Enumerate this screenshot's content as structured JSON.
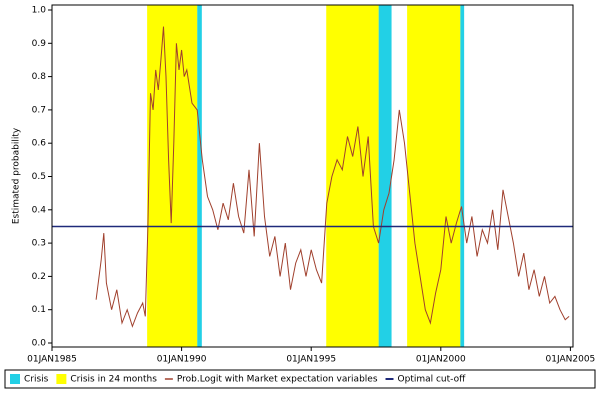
{
  "chart_data": {
    "type": "line",
    "ylabel": "Estimated probability",
    "ylim": [
      -0.012,
      1.015
    ],
    "yticks": [
      {
        "value": 0,
        "label": "0.0"
      },
      0.1,
      0.2,
      0.3,
      0.4,
      0.5,
      0.6,
      0.7,
      0.8,
      0.9,
      {
        "value": 1,
        "label": "1.0"
      }
    ],
    "xlim": [
      1985,
      2005.1
    ],
    "xticks": [
      {
        "value": 1985,
        "label": "01JAN1985"
      },
      {
        "value": 1990,
        "label": "01JAN1990"
      },
      {
        "value": 1995,
        "label": "01JAN1995"
      },
      {
        "value": 2000,
        "label": "01JAN2000"
      },
      {
        "value": 2005,
        "label": "01JAN2005"
      }
    ],
    "bands": [
      {
        "name": "Crisis",
        "color": "#22d0e6",
        "ranges": [
          [
            1990.6,
            1990.78
          ],
          [
            1997.6,
            1998.1
          ],
          [
            2000.75,
            2000.9
          ]
        ]
      },
      {
        "name": "Crisis in 24 months",
        "color": "#ffff00",
        "ranges": [
          [
            1988.67,
            1990.6
          ],
          [
            1995.58,
            1997.6
          ],
          [
            1998.7,
            2000.75
          ]
        ]
      }
    ],
    "series": [
      {
        "name": "Prob.Logit with Market expectation variables",
        "color": "#a0402d",
        "x": [
          1986.7,
          1986.9,
          1987.0,
          1987.1,
          1987.3,
          1987.5,
          1987.7,
          1987.9,
          1988.1,
          1988.3,
          1988.5,
          1988.6,
          1988.7,
          1988.8,
          1988.9,
          1989.0,
          1989.1,
          1989.2,
          1989.3,
          1989.4,
          1989.5,
          1989.6,
          1989.7,
          1989.8,
          1989.9,
          1990.0,
          1990.1,
          1990.2,
          1990.4,
          1990.6,
          1990.8,
          1991.0,
          1991.2,
          1991.4,
          1991.6,
          1991.8,
          1992.0,
          1992.2,
          1992.4,
          1992.6,
          1992.8,
          1993.0,
          1993.2,
          1993.4,
          1993.6,
          1993.8,
          1994.0,
          1994.2,
          1994.4,
          1994.6,
          1994.8,
          1995.0,
          1995.2,
          1995.4,
          1995.6,
          1995.8,
          1996.0,
          1996.2,
          1996.4,
          1996.6,
          1996.8,
          1997.0,
          1997.2,
          1997.4,
          1997.6,
          1997.8,
          1998.0,
          1998.2,
          1998.4,
          1998.6,
          1998.8,
          1999.0,
          1999.2,
          1999.4,
          1999.6,
          1999.8,
          2000.0,
          2000.2,
          2000.4,
          2000.6,
          2000.8,
          2001.0,
          2001.2,
          2001.4,
          2001.6,
          2001.8,
          2002.0,
          2002.2,
          2002.4,
          2002.6,
          2002.8,
          2003.0,
          2003.2,
          2003.4,
          2003.6,
          2003.8,
          2004.0,
          2004.2,
          2004.4,
          2004.6,
          2004.8,
          2004.95
        ],
        "values": [
          0.13,
          0.25,
          0.33,
          0.18,
          0.1,
          0.16,
          0.06,
          0.1,
          0.05,
          0.09,
          0.12,
          0.08,
          0.35,
          0.75,
          0.7,
          0.82,
          0.76,
          0.85,
          0.95,
          0.8,
          0.55,
          0.36,
          0.6,
          0.9,
          0.82,
          0.88,
          0.8,
          0.82,
          0.72,
          0.7,
          0.55,
          0.44,
          0.4,
          0.34,
          0.42,
          0.37,
          0.48,
          0.38,
          0.33,
          0.52,
          0.32,
          0.6,
          0.38,
          0.26,
          0.32,
          0.2,
          0.3,
          0.16,
          0.24,
          0.28,
          0.2,
          0.28,
          0.22,
          0.18,
          0.42,
          0.5,
          0.55,
          0.52,
          0.62,
          0.56,
          0.65,
          0.5,
          0.62,
          0.35,
          0.3,
          0.4,
          0.45,
          0.55,
          0.7,
          0.6,
          0.45,
          0.3,
          0.2,
          0.1,
          0.06,
          0.15,
          0.22,
          0.38,
          0.3,
          0.36,
          0.41,
          0.3,
          0.38,
          0.26,
          0.34,
          0.3,
          0.4,
          0.28,
          0.46,
          0.38,
          0.3,
          0.2,
          0.27,
          0.16,
          0.22,
          0.14,
          0.2,
          0.12,
          0.14,
          0.1,
          0.07,
          0.08
        ]
      }
    ],
    "cutoff": {
      "name": "Optimal cut-off",
      "value": 0.35,
      "color": "#1f2a7a"
    }
  }
}
